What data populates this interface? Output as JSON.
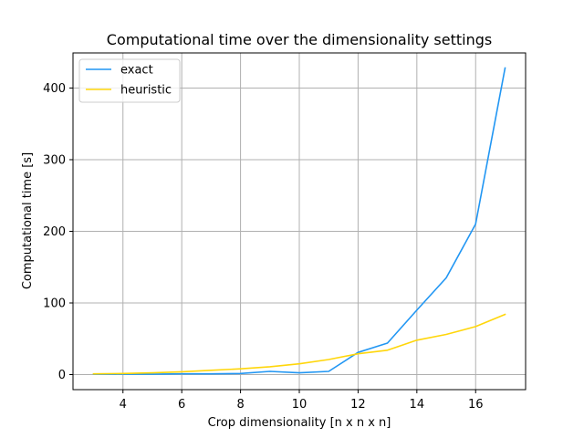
{
  "chart_data": {
    "type": "line",
    "title": "Computational time over the dimensionality settings",
    "xlabel": "Crop dimensionality [n x n x n]",
    "ylabel": "Computational time [s]",
    "xlim": [
      2.3,
      17.7
    ],
    "ylim": [
      -21,
      449
    ],
    "xticks": [
      4,
      6,
      8,
      10,
      12,
      14,
      16
    ],
    "yticks": [
      0,
      100,
      200,
      300,
      400
    ],
    "grid": true,
    "legend": "top-left",
    "series": [
      {
        "name": "exact",
        "color": "#2196f3",
        "x": [
          3,
          4,
          5,
          6,
          7,
          8,
          9,
          10,
          11,
          12,
          13,
          14,
          15,
          16,
          17
        ],
        "y": [
          0.5,
          0.5,
          0.5,
          1.0,
          1.0,
          1.5,
          4.5,
          2.5,
          4.5,
          31,
          44,
          90,
          135,
          210,
          428
        ]
      },
      {
        "name": "heuristic",
        "color": "#ffd60a",
        "x": [
          3,
          4,
          5,
          6,
          7,
          8,
          9,
          10,
          11,
          12,
          13,
          14,
          15,
          16,
          17
        ],
        "y": [
          1,
          1.5,
          2.5,
          4,
          6,
          8,
          11,
          15,
          21,
          29,
          34,
          48,
          56,
          67,
          84
        ]
      }
    ]
  }
}
